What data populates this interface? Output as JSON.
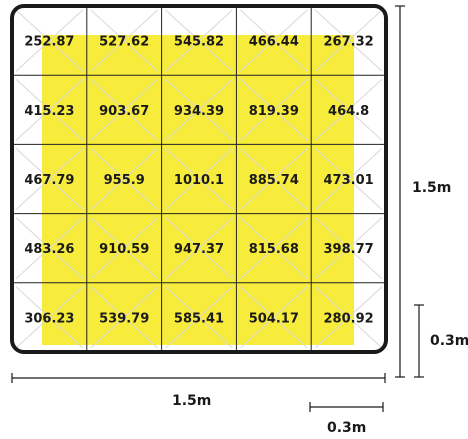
{
  "grid": {
    "rows": 5,
    "cols": 5,
    "values": [
      [
        "252.87",
        "527.62",
        "545.82",
        "466.44",
        "267.32"
      ],
      [
        "415.23",
        "903.67",
        "934.39",
        "819.39",
        "464.8"
      ],
      [
        "467.79",
        "955.9",
        "1010.1",
        "885.74",
        "473.01"
      ],
      [
        "483.26",
        "910.59",
        "947.37",
        "815.68",
        "398.77"
      ],
      [
        "306.23",
        "539.79",
        "585.41",
        "504.17",
        "280.92"
      ]
    ]
  },
  "dimensions": {
    "width_label": "1.5m",
    "height_label": "1.5m",
    "cell_width_label": "0.3m",
    "cell_height_label": "0.3m"
  },
  "colors": {
    "highlight": "#f7ec3c",
    "border": "#1a1a1a",
    "grid": "#222222"
  }
}
